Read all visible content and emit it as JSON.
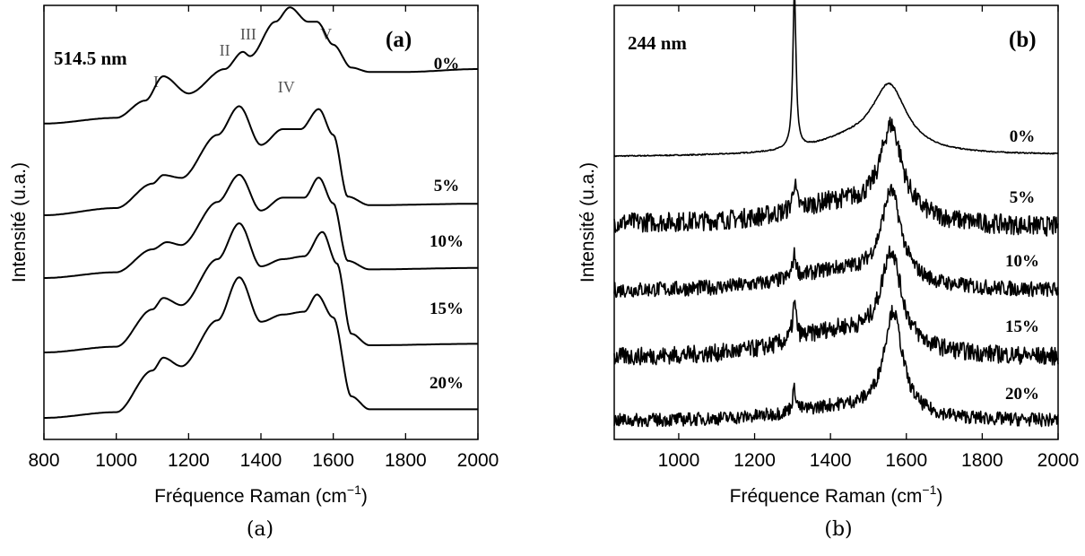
{
  "chart_data": [
    {
      "type": "line",
      "panel_label": "(a)",
      "caption": "(a)",
      "wavelength_label": "514.5 nm",
      "xlabel": "Fréquence Raman",
      "xlabel_unit": "(cm",
      "xlabel_unit_exp": "−1",
      "xlabel_unit_close": ")",
      "ylabel": "Intensité (u.a.)",
      "xlim": [
        800,
        2000
      ],
      "xticks": [
        800,
        1000,
        1200,
        1400,
        1600,
        1800,
        2000
      ],
      "grid": false,
      "peak_labels": [
        {
          "label": "I",
          "x": 1110
        },
        {
          "label": "II",
          "x": 1300
        },
        {
          "label": "III",
          "x": 1365
        },
        {
          "label": "IV",
          "x": 1470
        },
        {
          "label": "V",
          "x": 1580
        }
      ],
      "series": [
        {
          "name": "0%",
          "x": [
            800,
            1000,
            1080,
            1130,
            1200,
            1300,
            1350,
            1370,
            1440,
            1480,
            1530,
            1555,
            1600,
            1650,
            1700,
            1800,
            2000
          ],
          "y": [
            0.17,
            0.21,
            0.33,
            0.5,
            0.38,
            0.55,
            0.67,
            0.64,
            0.88,
            0.98,
            0.88,
            0.88,
            0.72,
            0.56,
            0.53,
            0.53,
            0.55
          ]
        },
        {
          "name": "5%",
          "x": [
            800,
            1000,
            1100,
            1130,
            1180,
            1280,
            1340,
            1400,
            1460,
            1510,
            1560,
            1600,
            1640,
            1700,
            2000
          ],
          "y": [
            0.0,
            0.05,
            0.22,
            0.28,
            0.26,
            0.56,
            0.76,
            0.49,
            0.6,
            0.6,
            0.74,
            0.56,
            0.13,
            0.07,
            0.08
          ]
        },
        {
          "name": "10%",
          "x": [
            800,
            1000,
            1100,
            1140,
            1180,
            1280,
            1340,
            1400,
            1460,
            1520,
            1560,
            1600,
            1640,
            1700,
            2000
          ],
          "y": [
            0.0,
            0.04,
            0.2,
            0.25,
            0.23,
            0.53,
            0.72,
            0.47,
            0.56,
            0.56,
            0.7,
            0.52,
            0.12,
            0.06,
            0.07
          ]
        },
        {
          "name": "15%",
          "x": [
            800,
            1000,
            1100,
            1130,
            1180,
            1280,
            1340,
            1400,
            1460,
            1520,
            1570,
            1610,
            1650,
            1700,
            2000
          ],
          "y": [
            0.0,
            0.04,
            0.3,
            0.38,
            0.33,
            0.65,
            0.9,
            0.6,
            0.65,
            0.67,
            0.84,
            0.62,
            0.13,
            0.05,
            0.06
          ]
        },
        {
          "name": "20%",
          "x": [
            800,
            1000,
            1100,
            1130,
            1180,
            1280,
            1340,
            1400,
            1460,
            1520,
            1555,
            1600,
            1650,
            1700,
            2000
          ],
          "y": [
            0.0,
            0.04,
            0.33,
            0.42,
            0.36,
            0.68,
            0.98,
            0.67,
            0.72,
            0.74,
            0.86,
            0.7,
            0.15,
            0.06,
            0.06
          ]
        }
      ]
    },
    {
      "type": "line",
      "panel_label": "(b)",
      "caption": "(b)",
      "wavelength_label": "244 nm",
      "xlabel": "Fréquence Raman",
      "xlabel_unit": "(cm",
      "xlabel_unit_exp": "−1",
      "xlabel_unit_close": ")",
      "ylabel": "Intensité (u.a.)",
      "xlim": [
        830,
        2000
      ],
      "xticks": [
        1000,
        1200,
        1400,
        1600,
        1800,
        2000
      ],
      "grid": false,
      "series": [
        {
          "name": "0%",
          "noise": 0.006,
          "baseline": [
            0.0,
            0.02
          ],
          "peaks": [
            {
              "x": 1305,
              "h": 1.75,
              "w": 5
            },
            {
              "x": 1555,
              "h": 0.72,
              "w": 55
            },
            {
              "x": 1450,
              "h": 0.15,
              "w": 120
            }
          ]
        },
        {
          "name": "5%",
          "noise": 0.11,
          "baseline": [
            0.05,
            0.0
          ],
          "peaks": [
            {
              "x": 1305,
              "h": 0.3,
              "w": 6
            },
            {
              "x": 1560,
              "h": 1.0,
              "w": 35
            },
            {
              "x": 1420,
              "h": 0.25,
              "w": 160
            }
          ]
        },
        {
          "name": "10%",
          "noise": 0.085,
          "baseline": [
            0.0,
            0.0
          ],
          "peaks": [
            {
              "x": 1305,
              "h": 0.25,
              "w": 6
            },
            {
              "x": 1560,
              "h": 1.0,
              "w": 32
            },
            {
              "x": 1420,
              "h": 0.22,
              "w": 160
            }
          ]
        },
        {
          "name": "15%",
          "noise": 0.1,
          "baseline": [
            0.0,
            0.0
          ],
          "peaks": [
            {
              "x": 1305,
              "h": 0.4,
              "w": 6
            },
            {
              "x": 1560,
              "h": 1.05,
              "w": 32
            },
            {
              "x": 1420,
              "h": 0.3,
              "w": 160
            }
          ]
        },
        {
          "name": "20%",
          "noise": 0.075,
          "baseline": [
            0.0,
            0.0
          ],
          "peaks": [
            {
              "x": 1305,
              "h": 0.25,
              "w": 6
            },
            {
              "x": 1565,
              "h": 1.15,
              "w": 30
            },
            {
              "x": 1420,
              "h": 0.15,
              "w": 160
            }
          ]
        }
      ]
    }
  ]
}
